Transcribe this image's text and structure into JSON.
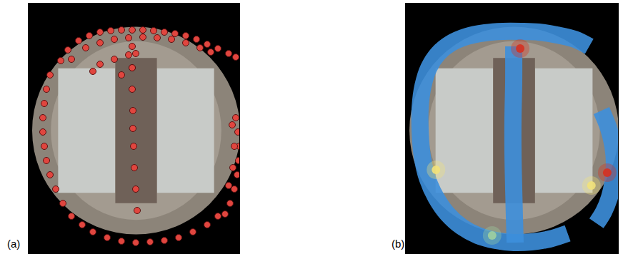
{
  "chart_data": [
    {
      "type": "scatter",
      "title": "(a)",
      "color": "#e0463f",
      "marker": "circle",
      "xlim": [
        0,
        295
      ],
      "ylim": [
        350,
        0
      ],
      "tick_labels": false,
      "x": [
        45,
        55,
        70,
        85,
        100,
        115,
        130,
        145,
        160,
        175,
        190,
        205,
        220,
        235,
        250,
        265,
        280,
        290,
        60,
        80,
        100,
        120,
        140,
        160,
        180,
        200,
        220,
        240,
        255,
        90,
        100,
        120,
        140,
        150,
        145,
        130,
        30,
        25,
        22,
        20,
        20,
        22,
        25,
        30,
        38,
        48,
        60,
        75,
        90,
        110,
        130,
        150,
        170,
        190,
        210,
        230,
        250,
        265,
        145,
        145,
        145,
        146,
        146,
        147,
        148,
        150,
        152,
        290,
        293,
        295,
        294,
        292,
        288,
        282,
        275,
        285,
        288,
        286,
        280
      ],
      "y": [
        80,
        65,
        52,
        45,
        40,
        38,
        37,
        37,
        37,
        38,
        40,
        42,
        45,
        50,
        57,
        63,
        70,
        75,
        78,
        62,
        55,
        50,
        48,
        47,
        48,
        50,
        55,
        62,
        68,
        95,
        85,
        78,
        72,
        70,
        90,
        100,
        100,
        120,
        140,
        160,
        180,
        200,
        220,
        240,
        260,
        280,
        298,
        310,
        320,
        328,
        333,
        335,
        334,
        332,
        328,
        320,
        310,
        298,
        60,
        90,
        120,
        150,
        175,
        200,
        230,
        260,
        290,
        160,
        180,
        200,
        220,
        240,
        260,
        280,
        295,
        170,
        200,
        230,
        255
      ]
    },
    {
      "type": "heatmap",
      "title": "(b)",
      "color": "#3d8fdc",
      "xlim": [
        0,
        295
      ],
      "ylim": [
        350,
        0
      ],
      "tick_labels": false,
      "paths": [
        {
          "x": [
            255,
            235,
            210,
            185,
            160,
            135,
            110,
            85,
            62,
            45,
            32,
            24,
            20,
            20,
            23,
            30,
            42,
            58,
            78,
            100,
            125,
            150,
            175,
            200,
            225
          ],
          "y": [
            60,
            50,
            44,
            40,
            39,
            39,
            41,
            46,
            56,
            70,
            90,
            115,
            145,
            180,
            215,
            245,
            272,
            295,
            313,
            325,
            332,
            335,
            334,
            330,
            322
          ]
        },
        {
          "x": [
            150,
            150,
            149,
            149,
            150,
            151,
            152
          ],
          "y": [
            60,
            110,
            160,
            210,
            260,
            300,
            335
          ]
        },
        {
          "x": [
            272,
            282,
            288,
            290,
            288,
            283,
            275,
            265
          ],
          "y": [
            150,
            175,
            200,
            225,
            250,
            272,
            292,
            308
          ]
        }
      ],
      "hotspots": {
        "x": [
          159,
          280,
          42,
          120,
          258
        ],
        "y": [
          63,
          237,
          233,
          325,
          255
        ],
        "colors": [
          "#d7301f",
          "#d7301f",
          "#f2e27a",
          "#9fd0a0",
          "#f2e27a"
        ]
      }
    }
  ]
}
